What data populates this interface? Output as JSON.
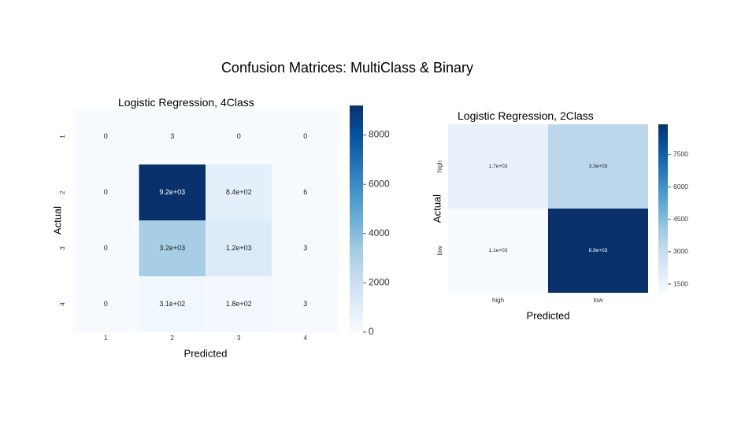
{
  "slide_title": "Confusion Matrices: MultiClass & Binary",
  "chart_data": [
    {
      "type": "heatmap",
      "title": "Logistic Regression, 4Class",
      "xlabel": "Predicted",
      "ylabel": "Actual",
      "x_categories": [
        "1",
        "2",
        "3",
        "4"
      ],
      "y_categories": [
        "1",
        "2",
        "3",
        "4"
      ],
      "values": [
        [
          0,
          3,
          0,
          0
        ],
        [
          0,
          9200,
          840,
          6
        ],
        [
          0,
          3200,
          1200,
          3
        ],
        [
          0,
          310,
          180,
          3
        ]
      ],
      "cell_labels": [
        [
          "0",
          "3",
          "0",
          "0"
        ],
        [
          "0",
          "9.2e+03",
          "8.4e+02",
          "6"
        ],
        [
          "0",
          "3.2e+03",
          "1.2e+03",
          "3"
        ],
        [
          "0",
          "3.1e+02",
          "1.8e+02",
          "3"
        ]
      ],
      "colorbar": {
        "min": 0,
        "max": 9200,
        "ticks": [
          0,
          2000,
          4000,
          6000,
          8000
        ],
        "tick_labels": [
          "0",
          "2000",
          "4000",
          "6000",
          "8000"
        ]
      },
      "colormap": "Blues"
    },
    {
      "type": "heatmap",
      "title": "Logistic Regression, 2Class",
      "xlabel": "Predicted",
      "ylabel": "Actual",
      "x_categories": [
        "high",
        "low"
      ],
      "y_categories": [
        "high",
        "low"
      ],
      "values": [
        [
          1700,
          3300
        ],
        [
          1100,
          8900
        ]
      ],
      "cell_labels": [
        [
          "1.7e+03",
          "3.3e+03"
        ],
        [
          "1.1e+03",
          "8.9e+03"
        ]
      ],
      "colorbar": {
        "min": 1100,
        "max": 8900,
        "ticks": [
          1500,
          3000,
          4500,
          6000,
          7500
        ],
        "tick_labels": [
          "1500",
          "3000",
          "4500",
          "6000",
          "7500"
        ]
      },
      "colormap": "Blues"
    }
  ]
}
